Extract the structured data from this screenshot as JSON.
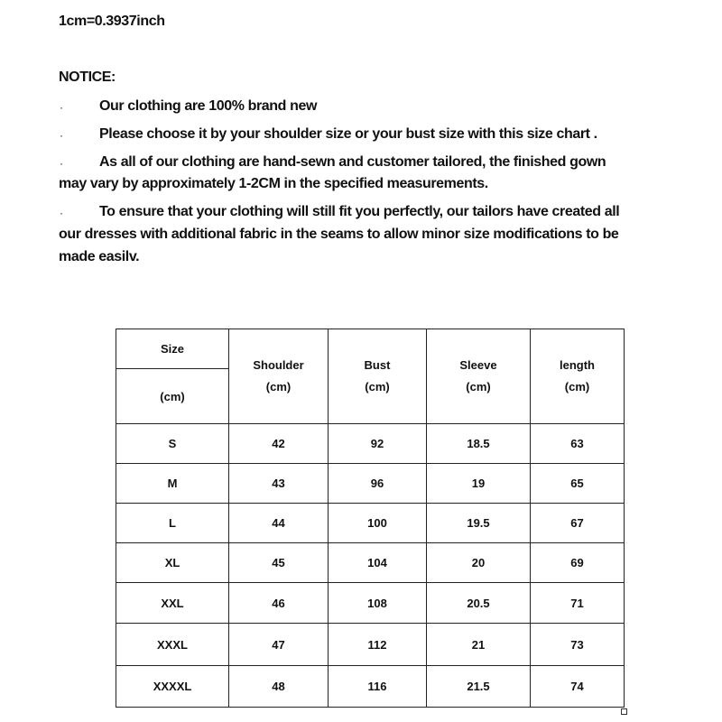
{
  "conversion": "1cm=0.3937inch",
  "notice": {
    "title": "NOTICE:",
    "bullet": "·",
    "items": [
      "Our clothing are 100% brand new",
      "Please choose it by your shoulder size or your bust size with this size chart .",
      "As all of our clothing are hand-sewn and customer tailored, the finished gown",
      "may vary by approximately 1-2CM in the specified measurements.",
      "To ensure that your clothing will still fit you perfectly, our tailors have created all",
      "our dresses with additional fabric in the seams to allow minor size modifications to be",
      "made easilv."
    ]
  },
  "table": {
    "size_header": "Size",
    "size_unit": "(cm)",
    "columns": [
      {
        "name": "Shoulder",
        "unit": "(cm)"
      },
      {
        "name": "Bust",
        "unit": "(cm)"
      },
      {
        "name": "Sleeve",
        "unit": "(cm)"
      },
      {
        "name": "length",
        "unit": "(cm)"
      }
    ],
    "rows": [
      [
        "S",
        "42",
        "92",
        "18.5",
        "63"
      ],
      [
        "M",
        "43",
        "96",
        "19",
        "65"
      ],
      [
        "L",
        "44",
        "100",
        "19.5",
        "67"
      ],
      [
        "XL",
        "45",
        "104",
        "20",
        "69"
      ],
      [
        "XXL",
        "46",
        "108",
        "20.5",
        "71"
      ],
      [
        "XXXL",
        "47",
        "112",
        "21",
        "73"
      ],
      [
        "XXXXL",
        "48",
        "116",
        "21.5",
        "74"
      ]
    ]
  }
}
